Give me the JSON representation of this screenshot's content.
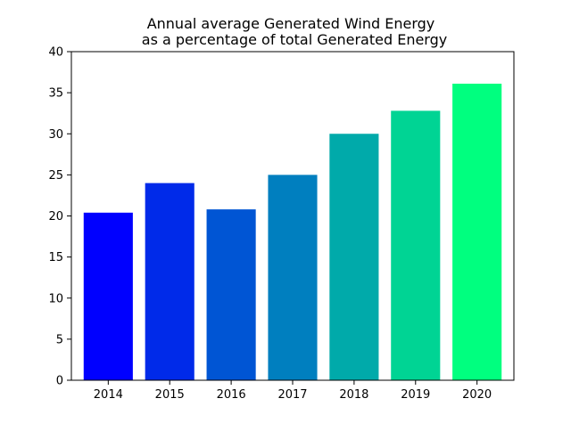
{
  "chart_data": {
    "type": "bar",
    "title_lines": [
      "Annual average Generated Wind Energy",
      "as a percentage of total Generated Energy"
    ],
    "categories": [
      "2014",
      "2015",
      "2016",
      "2017",
      "2018",
      "2019",
      "2020"
    ],
    "values": [
      20.4,
      24.0,
      20.8,
      25.0,
      30.0,
      32.8,
      36.1
    ],
    "bar_colors": [
      "#0000ff",
      "#002ae9",
      "#0055d4",
      "#007fbf",
      "#00aaaa",
      "#00d494",
      "#00ff7f"
    ],
    "xlabel": "",
    "ylabel": "",
    "ylim": [
      0,
      40
    ],
    "yticks": [
      0,
      5,
      10,
      15,
      20,
      25,
      30,
      35,
      40
    ],
    "grid": false,
    "legend": false
  }
}
